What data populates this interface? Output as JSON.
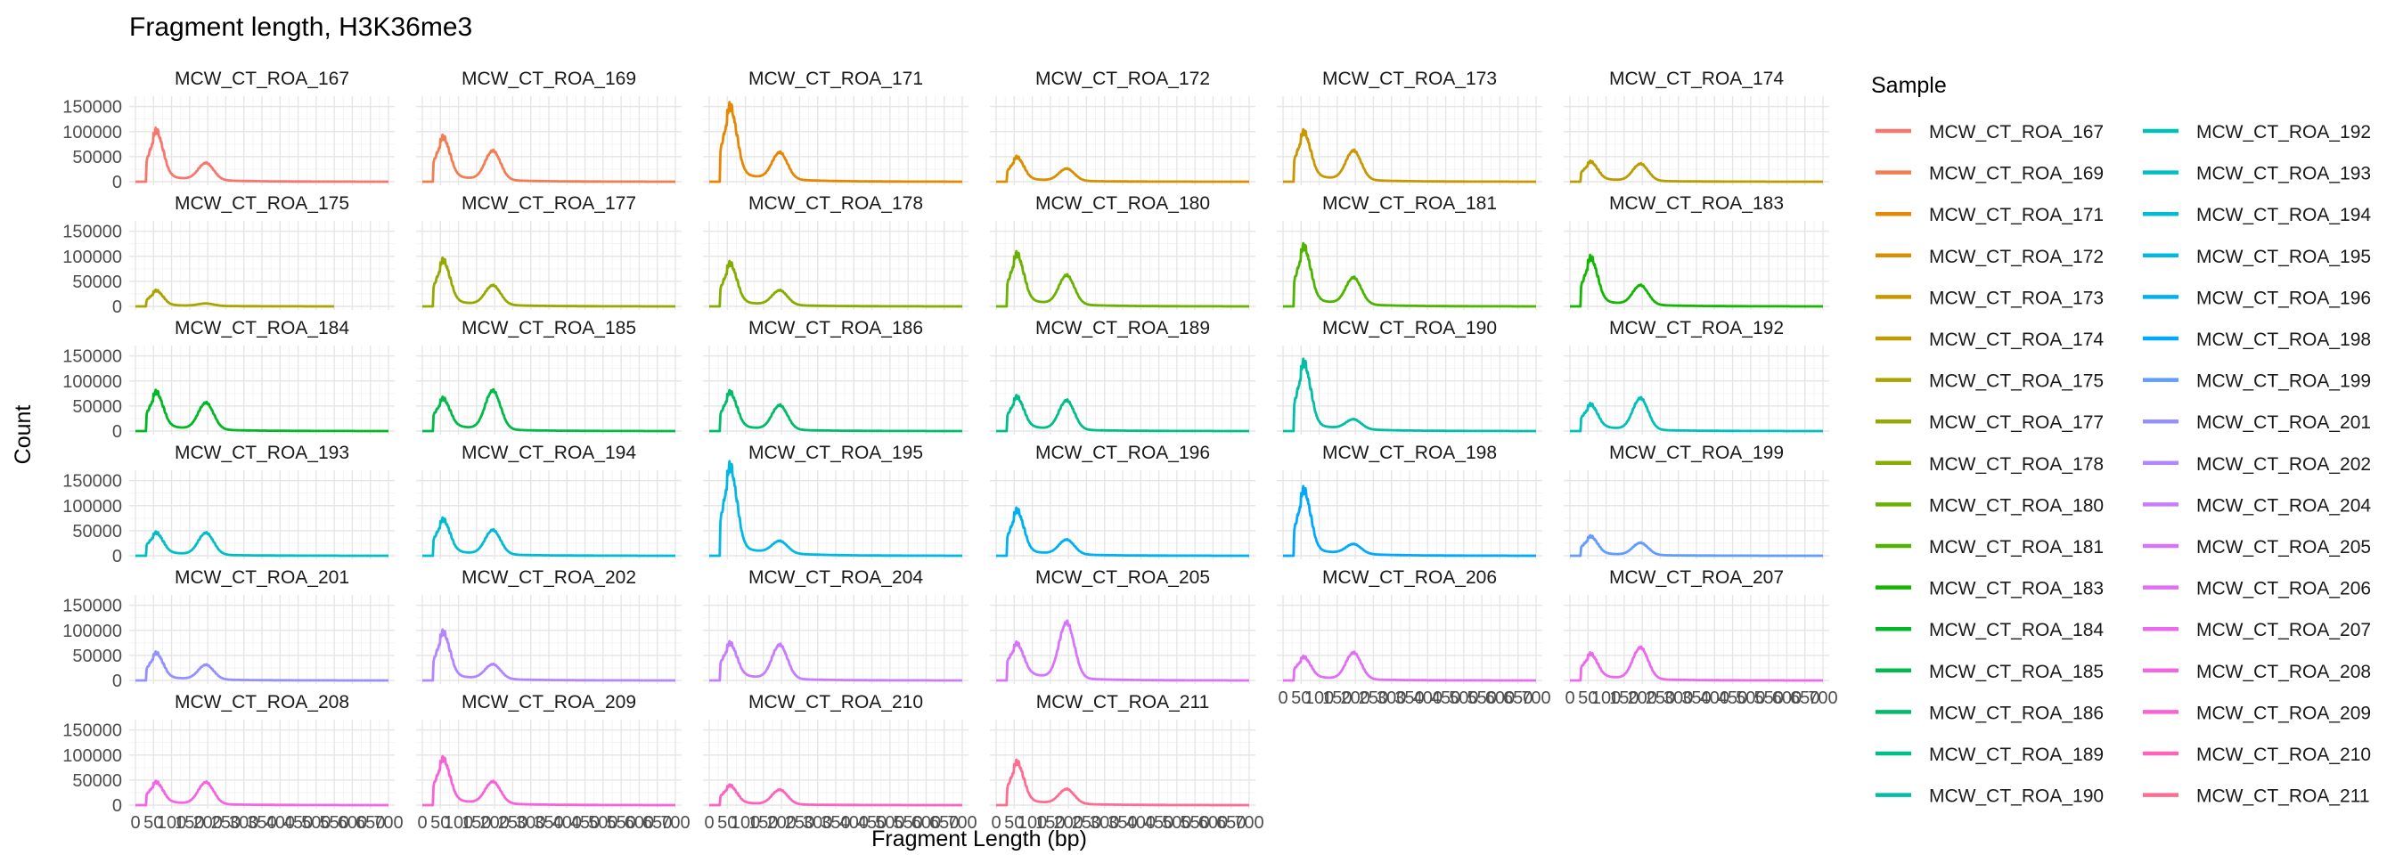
{
  "chart_data": {
    "type": "line",
    "title": "Fragment length, H3K36me3",
    "xlabel": "Fragment Length (bp)",
    "ylabel": "Count",
    "xlim": [
      0,
      700
    ],
    "ylim": [
      0,
      160000
    ],
    "x_tick_labels": [
      "0",
      "50",
      "100",
      "150",
      "200",
      "250",
      "300",
      "350",
      "400",
      "450",
      "500",
      "550",
      "600",
      "650",
      "700"
    ],
    "y_tick_labels": [
      "0",
      "50000",
      "100000",
      "150000"
    ],
    "y_ticks": [
      0,
      50000,
      100000,
      150000
    ],
    "legend_title": "Sample",
    "panels": [
      {
        "name": "MCW_CT_ROA_167",
        "color": "#F8766D",
        "nuc": 95000,
        "di": 35000,
        "xmax": 700
      },
      {
        "name": "MCW_CT_ROA_169",
        "color": "#F27D52",
        "nuc": 80000,
        "di": 60000,
        "xmax": 700
      },
      {
        "name": "MCW_CT_ROA_171",
        "color": "#E58700",
        "nuc": 140000,
        "di": 55000,
        "xmax": 700
      },
      {
        "name": "MCW_CT_ROA_172",
        "color": "#D89000",
        "nuc": 45000,
        "di": 25000,
        "xmax": 700
      },
      {
        "name": "MCW_CT_ROA_173",
        "color": "#C99800",
        "nuc": 90000,
        "di": 60000,
        "xmax": 700
      },
      {
        "name": "MCW_CT_ROA_174",
        "color": "#BB9D00",
        "nuc": 35000,
        "di": 35000,
        "xmax": 700
      },
      {
        "name": "MCW_CT_ROA_175",
        "color": "#A9A400",
        "nuc": 30000,
        "di": 5000,
        "xmax": 550
      },
      {
        "name": "MCW_CT_ROA_177",
        "color": "#96A900",
        "nuc": 85000,
        "di": 40000,
        "xmax": 700
      },
      {
        "name": "MCW_CT_ROA_178",
        "color": "#85AD00",
        "nuc": 80000,
        "di": 30000,
        "xmax": 700
      },
      {
        "name": "MCW_CT_ROA_180",
        "color": "#6BB100",
        "nuc": 95000,
        "di": 60000,
        "xmax": 700
      },
      {
        "name": "MCW_CT_ROA_181",
        "color": "#4FB400",
        "nuc": 110000,
        "di": 55000,
        "xmax": 700
      },
      {
        "name": "MCW_CT_ROA_183",
        "color": "#13B600",
        "nuc": 90000,
        "di": 40000,
        "xmax": 700
      },
      {
        "name": "MCW_CT_ROA_184",
        "color": "#00B823",
        "nuc": 70000,
        "di": 55000,
        "xmax": 700
      },
      {
        "name": "MCW_CT_ROA_185",
        "color": "#00BA49",
        "nuc": 55000,
        "di": 80000,
        "xmax": 700
      },
      {
        "name": "MCW_CT_ROA_186",
        "color": "#00BC6A",
        "nuc": 70000,
        "di": 50000,
        "xmax": 700
      },
      {
        "name": "MCW_CT_ROA_189",
        "color": "#00BE8A",
        "nuc": 60000,
        "di": 60000,
        "xmax": 700
      },
      {
        "name": "MCW_CT_ROA_190",
        "color": "#00BFA4",
        "nuc": 130000,
        "di": 20000,
        "xmax": 700
      },
      {
        "name": "MCW_CT_ROA_192",
        "color": "#00C0B8",
        "nuc": 45000,
        "di": 65000,
        "xmax": 700
      },
      {
        "name": "MCW_CT_ROA_193",
        "color": "#00BFC4",
        "nuc": 40000,
        "di": 45000,
        "xmax": 700
      },
      {
        "name": "MCW_CT_ROA_194",
        "color": "#00BCD3",
        "nuc": 65000,
        "di": 50000,
        "xmax": 700
      },
      {
        "name": "MCW_CT_ROA_195",
        "color": "#00B8E3",
        "nuc": 170000,
        "di": 25000,
        "xmax": 700
      },
      {
        "name": "MCW_CT_ROA_196",
        "color": "#00B1F2",
        "nuc": 85000,
        "di": 30000,
        "xmax": 700
      },
      {
        "name": "MCW_CT_ROA_198",
        "color": "#00A9FF",
        "nuc": 125000,
        "di": 20000,
        "xmax": 700
      },
      {
        "name": "MCW_CT_ROA_199",
        "color": "#619CFF",
        "nuc": 35000,
        "di": 25000,
        "xmax": 700
      },
      {
        "name": "MCW_CT_ROA_201",
        "color": "#9590FF",
        "nuc": 50000,
        "di": 30000,
        "xmax": 700
      },
      {
        "name": "MCW_CT_ROA_202",
        "color": "#B385FF",
        "nuc": 90000,
        "di": 30000,
        "xmax": 700
      },
      {
        "name": "MCW_CT_ROA_204",
        "color": "#C77CFF",
        "nuc": 65000,
        "di": 70000,
        "xmax": 700
      },
      {
        "name": "MCW_CT_ROA_205",
        "color": "#D674FD",
        "nuc": 60000,
        "di": 115000,
        "xmax": 700
      },
      {
        "name": "MCW_CT_ROA_206",
        "color": "#E26EF7",
        "nuc": 40000,
        "di": 55000,
        "xmax": 700
      },
      {
        "name": "MCW_CT_ROA_207",
        "color": "#EC69EF",
        "nuc": 45000,
        "di": 65000,
        "xmax": 700
      },
      {
        "name": "MCW_CT_ROA_208",
        "color": "#F564E3",
        "nuc": 40000,
        "di": 45000,
        "xmax": 700
      },
      {
        "name": "MCW_CT_ROA_209",
        "color": "#FB61D7",
        "nuc": 85000,
        "di": 45000,
        "xmax": 700
      },
      {
        "name": "MCW_CT_ROA_210",
        "color": "#FF62BC",
        "nuc": 35000,
        "di": 30000,
        "xmax": 700
      },
      {
        "name": "MCW_CT_ROA_211",
        "color": "#FF6C91",
        "nuc": 80000,
        "di": 30000,
        "xmax": 700
      }
    ]
  }
}
